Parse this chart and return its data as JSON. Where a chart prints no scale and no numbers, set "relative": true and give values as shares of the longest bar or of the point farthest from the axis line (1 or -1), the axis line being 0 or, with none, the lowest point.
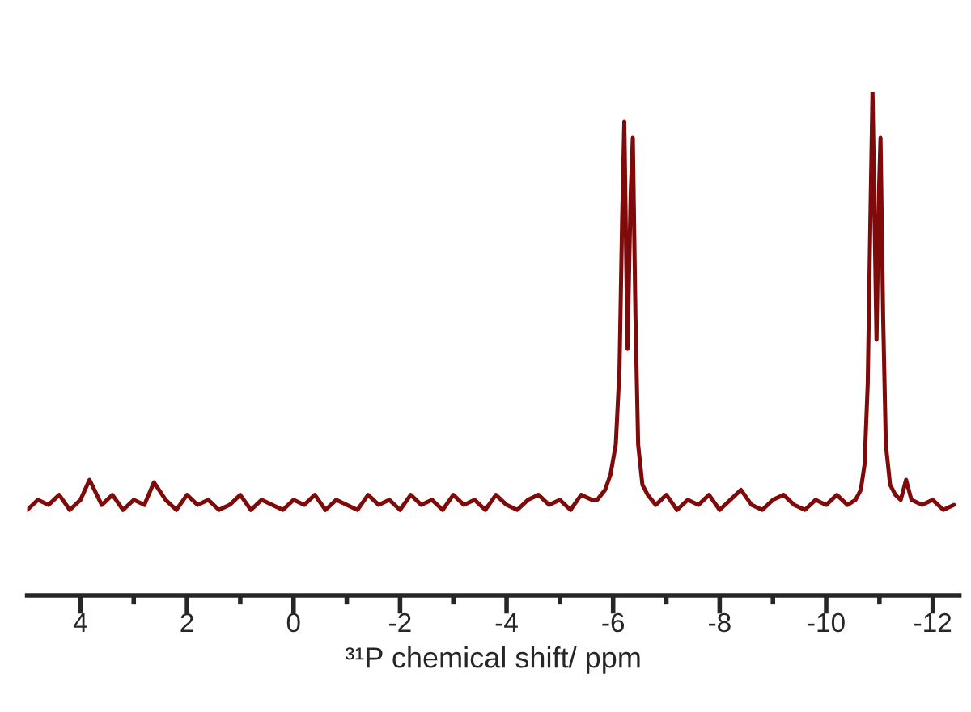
{
  "chart_data": {
    "type": "line",
    "xlabel": "³¹P chemical shift/ ppm",
    "relative": true,
    "xlim": [
      5,
      -12.5
    ],
    "xticks": [
      4,
      {
        "value": 3,
        "label": null
      },
      2,
      {
        "value": 1,
        "label": null
      },
      0,
      {
        "value": -1,
        "label": null
      },
      -2,
      {
        "value": -3,
        "label": null
      },
      -4,
      {
        "value": -5,
        "label": null
      },
      -6,
      {
        "value": -7,
        "label": null
      },
      -8,
      {
        "value": -9,
        "label": null
      },
      -10,
      {
        "value": -11,
        "label": null
      },
      -12
    ],
    "tick_labels": "x",
    "grid": false,
    "legend": false,
    "marker": "none",
    "line_style": "solid",
    "series": [
      {
        "color": "#7f0a0a",
        "x": [
          5.0,
          4.8,
          4.6,
          4.4,
          4.2,
          4.0,
          3.83,
          3.6,
          3.4,
          3.2,
          3.0,
          2.8,
          2.62,
          2.4,
          2.2,
          2.0,
          1.8,
          1.6,
          1.4,
          1.2,
          1.0,
          0.8,
          0.6,
          0.4,
          0.2,
          0.0,
          -0.2,
          -0.4,
          -0.6,
          -0.8,
          -1.0,
          -1.2,
          -1.4,
          -1.6,
          -1.8,
          -2.0,
          -2.2,
          -2.4,
          -2.6,
          -2.8,
          -3.0,
          -3.2,
          -3.4,
          -3.6,
          -3.8,
          -4.0,
          -4.2,
          -4.4,
          -4.6,
          -4.8,
          -5.0,
          -5.2,
          -5.4,
          -5.6,
          -5.7,
          -5.85,
          -5.95,
          -6.05,
          -6.12,
          -6.17,
          -6.21,
          -6.27,
          -6.33,
          -6.37,
          -6.42,
          -6.47,
          -6.55,
          -6.65,
          -6.8,
          -7.0,
          -7.2,
          -7.4,
          -7.6,
          -7.8,
          -8.0,
          -8.2,
          -8.4,
          -8.6,
          -8.8,
          -9.0,
          -9.2,
          -9.4,
          -9.6,
          -9.8,
          -10.0,
          -10.2,
          -10.4,
          -10.55,
          -10.65,
          -10.72,
          -10.78,
          -10.83,
          -10.87,
          -10.945,
          -10.99,
          -11.02,
          -11.07,
          -11.12,
          -11.2,
          -11.3,
          -11.4,
          -11.5,
          -11.6,
          -11.8,
          -12.0,
          -12.2,
          -12.4
        ],
        "values": [
          0.17,
          0.19,
          0.18,
          0.2,
          0.17,
          0.19,
          0.23,
          0.18,
          0.2,
          0.17,
          0.19,
          0.18,
          0.225,
          0.19,
          0.17,
          0.2,
          0.18,
          0.19,
          0.17,
          0.18,
          0.2,
          0.17,
          0.19,
          0.18,
          0.17,
          0.19,
          0.18,
          0.2,
          0.17,
          0.19,
          0.18,
          0.17,
          0.2,
          0.18,
          0.19,
          0.17,
          0.2,
          0.18,
          0.19,
          0.17,
          0.2,
          0.18,
          0.19,
          0.17,
          0.2,
          0.18,
          0.17,
          0.19,
          0.2,
          0.18,
          0.19,
          0.17,
          0.2,
          0.19,
          0.19,
          0.21,
          0.24,
          0.3,
          0.45,
          0.75,
          0.942,
          0.49,
          0.8,
          0.91,
          0.55,
          0.3,
          0.22,
          0.2,
          0.18,
          0.2,
          0.17,
          0.19,
          0.18,
          0.2,
          0.17,
          0.19,
          0.21,
          0.18,
          0.17,
          0.19,
          0.2,
          0.18,
          0.17,
          0.19,
          0.18,
          0.2,
          0.18,
          0.19,
          0.21,
          0.26,
          0.42,
          0.75,
          1.0,
          0.508,
          0.8,
          0.91,
          0.55,
          0.3,
          0.22,
          0.2,
          0.19,
          0.23,
          0.19,
          0.18,
          0.19,
          0.17,
          0.18
        ]
      }
    ]
  }
}
